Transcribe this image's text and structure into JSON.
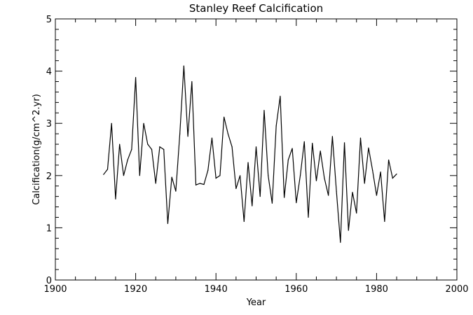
{
  "chart_data": {
    "type": "line",
    "title": "Stanley Reef Calcification",
    "xlabel": "Year",
    "ylabel": "Calcification(g/cm^2.yr)",
    "xlim": [
      1900,
      2000
    ],
    "ylim": [
      0,
      5
    ],
    "x_ticks": [
      1900,
      1920,
      1940,
      1960,
      1980,
      2000
    ],
    "y_ticks": [
      0,
      1,
      2,
      3,
      4,
      5
    ],
    "grid": false,
    "legend": "none",
    "series": [
      {
        "x": [
          1912,
          1913,
          1914,
          1915,
          1916,
          1917,
          1918,
          1919,
          1920,
          1921,
          1922,
          1923,
          1924,
          1925,
          1926,
          1927,
          1928,
          1929,
          1930,
          1931,
          1932,
          1933,
          1934,
          1935,
          1936,
          1937,
          1938,
          1939,
          1940,
          1941,
          1942,
          1943,
          1944,
          1945,
          1946,
          1947,
          1948,
          1949,
          1950,
          1951,
          1952,
          1953,
          1954,
          1955,
          1956,
          1957,
          1958,
          1959,
          1960,
          1961,
          1962,
          1963,
          1964,
          1965,
          1966,
          1967,
          1968,
          1969,
          1970,
          1971,
          1972,
          1973,
          1974,
          1975,
          1976,
          1977,
          1978,
          1979,
          1980,
          1981,
          1982,
          1983,
          1984,
          1985
        ],
        "y": [
          2.02,
          2.12,
          3.0,
          1.55,
          2.6,
          2.0,
          2.3,
          2.5,
          3.88,
          2.0,
          3.0,
          2.6,
          2.5,
          1.85,
          2.55,
          2.5,
          1.08,
          1.97,
          1.7,
          2.8,
          4.1,
          2.75,
          3.8,
          1.82,
          1.85,
          1.83,
          2.1,
          2.72,
          1.95,
          2.0,
          3.12,
          2.8,
          2.55,
          1.75,
          2.0,
          1.12,
          2.25,
          1.42,
          2.55,
          1.6,
          3.25,
          2.0,
          1.47,
          2.95,
          3.52,
          1.58,
          2.3,
          2.52,
          1.48,
          2.0,
          2.65,
          1.2,
          2.62,
          1.9,
          2.47,
          1.95,
          1.62,
          2.75,
          1.7,
          0.72,
          2.63,
          0.95,
          1.68,
          1.28,
          2.72,
          1.85,
          2.53,
          2.1,
          1.62,
          2.07,
          1.12,
          2.3,
          1.95,
          2.03
        ]
      }
    ]
  }
}
